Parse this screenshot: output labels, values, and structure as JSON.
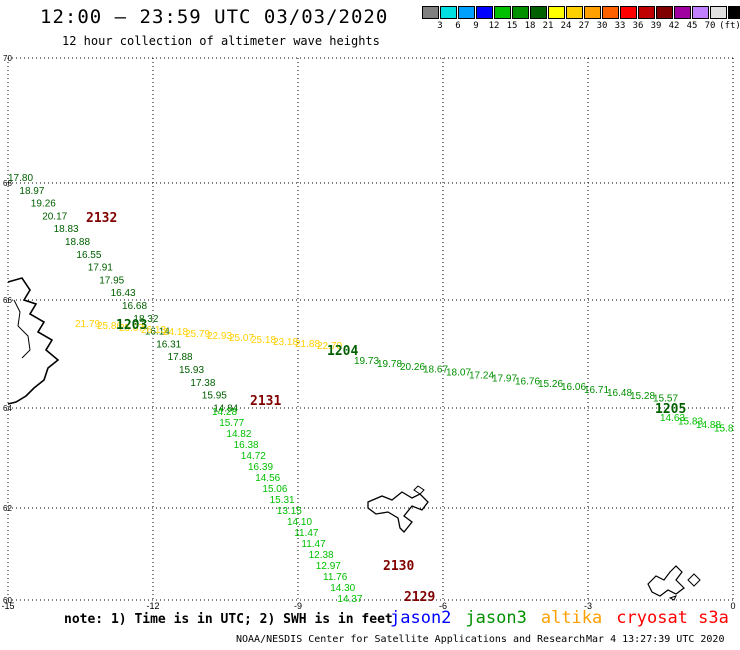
{
  "title": "12:00 – 23:59 UTC 03/03/2020",
  "subtitle": "12 hour collection of altimeter wave heights",
  "legend": {
    "unit": "(ft)",
    "colors": [
      "#808080",
      "#00e0e0",
      "#00a0ff",
      "#0000ff",
      "#00c000",
      "#009000",
      "#006000",
      "#ffff00",
      "#ffd000",
      "#ffa000",
      "#ff6000",
      "#ff0000",
      "#c00000",
      "#800000",
      "#a000a0",
      "#c080ff",
      "#e0e0e0",
      "#000000"
    ],
    "labels": [
      "3",
      "6",
      "9",
      "12",
      "15",
      "18",
      "21",
      "24",
      "27",
      "30",
      "33",
      "36",
      "39",
      "42",
      "45",
      "70"
    ]
  },
  "map": {
    "lon_range": [
      -15,
      0
    ],
    "lat_range": [
      60,
      70
    ],
    "x_ticks": [
      "-15",
      "-12",
      "-9",
      "-6",
      "-3",
      "0"
    ],
    "y_ticks": [
      "70",
      "68",
      "66",
      "64",
      "62",
      "60"
    ],
    "grid": "dotted"
  },
  "tracks": [
    {
      "id": "2132",
      "color": "#006000",
      "label_color": "#800000",
      "values": [
        "17.80",
        "18.97",
        "19.26",
        "20.17",
        "18.83",
        "18.88",
        "16.55",
        "17.91",
        "17.95",
        "16.43",
        "16.68",
        "18.32",
        "16.14",
        "16.31",
        "17.88",
        "15.93",
        "17.38",
        "15.95",
        "14.84"
      ]
    },
    {
      "id": "2131",
      "color": "#00c000",
      "label_color": "#800000",
      "values": [
        "14.28",
        "15.77",
        "14.82",
        "16.38",
        "14.72",
        "16.39",
        "14.56",
        "15.06",
        "15.31",
        "13.15",
        "14.10",
        "11.47",
        "11.47",
        "12.38",
        "12.97",
        "11.76",
        "14.30",
        "14.37"
      ]
    },
    {
      "id": "1203",
      "color": "#ffd000",
      "label_color": "#006000",
      "values": [
        "21.79",
        "25.86",
        "25.07",
        "26.13",
        "24.18",
        "25.79",
        "22.93",
        "25.07",
        "25.18",
        "23.18",
        "21.88",
        "22.70"
      ]
    },
    {
      "id": "1204",
      "color": "#009000",
      "label_color": "#006000",
      "values": [
        "19.73",
        "19.78",
        "20.26",
        "18.67",
        "18.07",
        "17.24",
        "17.97",
        "16.76",
        "15.26",
        "16.06",
        "16.71",
        "16.48",
        "15.28",
        "15.57"
      ]
    },
    {
      "id": "1205",
      "color": "#00c000",
      "label_color": "#006000",
      "values": [
        "14.63",
        "15.83",
        "14.88",
        "15.8"
      ]
    },
    {
      "id": "2130",
      "color": "#800000",
      "label_color": "#800000",
      "values": []
    },
    {
      "id": "2129",
      "color": "#800000",
      "label_color": "#800000",
      "values": []
    }
  ],
  "footnote": "note: 1) Time is in UTC; 2) SWH is in feet",
  "satellites": [
    {
      "name": "jason2",
      "color": "#0000ff"
    },
    {
      "name": "jason3",
      "color": "#009000"
    },
    {
      "name": "altika",
      "color": "#ffa000"
    },
    {
      "name": "cryosat s3a",
      "color": "#ff0000"
    }
  ],
  "credit": "NOAA/NESDIS Center for Satellite Applications and Research",
  "timestamp": "Mar  4 13:27:39 UTC 2020"
}
